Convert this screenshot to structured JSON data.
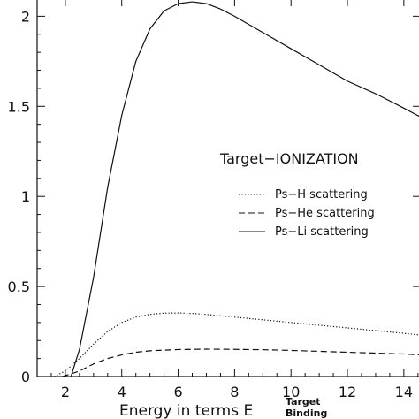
{
  "chart_data": {
    "type": "line",
    "annotation": "Target−IONIZATION",
    "xlabel": "Energy in terms E",
    "xlabel_superscript": "Target",
    "xlabel_subscript": "Binding",
    "ylabel": "",
    "xlim": [
      1.0,
      14.6
    ],
    "ylim": [
      0,
      2.1
    ],
    "x_ticks": [
      2,
      4,
      6,
      8,
      10,
      12,
      14
    ],
    "y_ticks": [
      0,
      0.5,
      1,
      1.5,
      2
    ],
    "x_tick_labels": [
      "2",
      "4",
      "6",
      "8",
      "10",
      "12",
      "14"
    ],
    "y_tick_labels": [
      "0",
      "0.5",
      "1",
      "1.5",
      "2"
    ],
    "grid": false,
    "legend_position": "center-right",
    "series": [
      {
        "name": "Ps−H scattering",
        "dash": "dotted",
        "color": "#111111",
        "x": [
          1.6,
          2.0,
          2.5,
          3.0,
          3.5,
          4.0,
          4.5,
          5.0,
          5.5,
          6.0,
          6.5,
          7.0,
          8.0,
          9.0,
          10.0,
          11.0,
          12.0,
          13.0,
          14.0,
          14.6
        ],
        "y": [
          0.0,
          0.03,
          0.1,
          0.18,
          0.25,
          0.3,
          0.33,
          0.345,
          0.352,
          0.353,
          0.35,
          0.345,
          0.33,
          0.315,
          0.3,
          0.285,
          0.27,
          0.255,
          0.24,
          0.23
        ]
      },
      {
        "name": "Ps−He scattering",
        "dash": "dashed",
        "color": "#111111",
        "x": [
          1.9,
          2.5,
          3.0,
          3.5,
          4.0,
          4.5,
          5.0,
          6.0,
          7.0,
          8.0,
          9.0,
          10.0,
          11.0,
          12.0,
          13.0,
          14.0,
          14.6
        ],
        "y": [
          0.0,
          0.03,
          0.07,
          0.1,
          0.12,
          0.135,
          0.143,
          0.15,
          0.152,
          0.151,
          0.149,
          0.145,
          0.14,
          0.135,
          0.13,
          0.125,
          0.12
        ]
      },
      {
        "name": "Ps−Li scattering",
        "dash": "solid",
        "color": "#111111",
        "x": [
          2.2,
          2.5,
          3.0,
          3.5,
          4.0,
          4.5,
          5.0,
          5.5,
          6.0,
          6.5,
          7.0,
          7.5,
          8.0,
          9.0,
          10.0,
          11.0,
          12.0,
          13.0,
          14.0,
          14.6
        ],
        "y": [
          0.0,
          0.15,
          0.55,
          1.05,
          1.45,
          1.75,
          1.93,
          2.03,
          2.07,
          2.08,
          2.07,
          2.04,
          2.0,
          1.91,
          1.82,
          1.73,
          1.64,
          1.57,
          1.49,
          1.44
        ]
      }
    ]
  }
}
